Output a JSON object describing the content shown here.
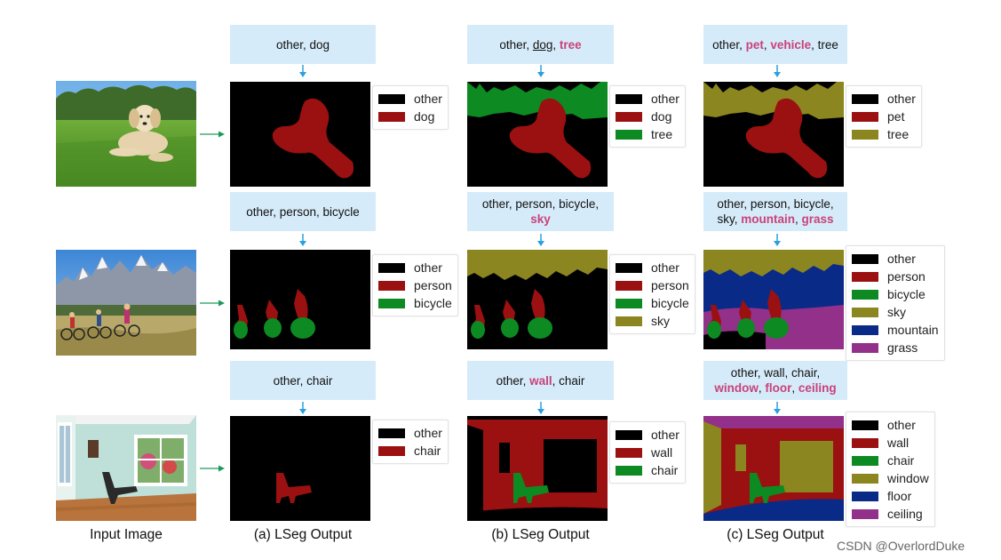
{
  "colors": {
    "other": "#000000",
    "red": "#9b1010",
    "green": "#0d8a22",
    "olive": "#8c8620",
    "blue": "#0a2a88",
    "purple": "#92308a",
    "prompt_bg": "#d6ebf9",
    "highlight": "#c8427a",
    "arrow": "#2aa0e0",
    "green_arrow": "#1a9a5a"
  },
  "prompts": {
    "r1a": {
      "parts": [
        {
          "t": "other, dog"
        }
      ]
    },
    "r1b": {
      "parts": [
        {
          "t": "other, "
        },
        {
          "t": "dog",
          "ul": true
        },
        {
          "t": ", "
        },
        {
          "t": "tree",
          "hl": true
        }
      ]
    },
    "r1c": {
      "parts": [
        {
          "t": "other, "
        },
        {
          "t": "pet",
          "hl": true
        },
        {
          "t": ", "
        },
        {
          "t": "vehicle",
          "hl": true
        },
        {
          "t": ", tree"
        }
      ]
    },
    "r2a": {
      "parts": [
        {
          "t": "other, person, bicycle"
        }
      ]
    },
    "r2b": {
      "parts": [
        {
          "t": "other, person, bicycle,"
        },
        {
          "br": true
        },
        {
          "t": "sky",
          "hl": true
        }
      ]
    },
    "r2c": {
      "parts": [
        {
          "t": "other, person, bicycle,"
        },
        {
          "br": true
        },
        {
          "t": "sky, "
        },
        {
          "t": "mountain",
          "hl": true
        },
        {
          "t": ", "
        },
        {
          "t": "grass",
          "hl": true
        }
      ]
    },
    "r3a": {
      "parts": [
        {
          "t": "other, chair"
        }
      ]
    },
    "r3b": {
      "parts": [
        {
          "t": "other, "
        },
        {
          "t": "wall",
          "hl": true
        },
        {
          "t": ", chair"
        }
      ]
    },
    "r3c": {
      "parts": [
        {
          "t": "other, wall, chair,"
        },
        {
          "br": true
        },
        {
          "t": "window",
          "hl": true
        },
        {
          "t": ", "
        },
        {
          "t": "floor",
          "hl": true
        },
        {
          "t": ", "
        },
        {
          "t": "ceiling",
          "hl": true
        }
      ]
    }
  },
  "legends": {
    "r1a": [
      {
        "label": "other",
        "color": "#000000"
      },
      {
        "label": "dog",
        "color": "#9b1010"
      }
    ],
    "r1b": [
      {
        "label": "other",
        "color": "#000000"
      },
      {
        "label": "dog",
        "color": "#9b1010"
      },
      {
        "label": "tree",
        "color": "#0d8a22"
      }
    ],
    "r1c": [
      {
        "label": "other",
        "color": "#000000"
      },
      {
        "label": "pet",
        "color": "#9b1010"
      },
      {
        "label": "tree",
        "color": "#8c8620"
      }
    ],
    "r2a": [
      {
        "label": "other",
        "color": "#000000"
      },
      {
        "label": "person",
        "color": "#9b1010"
      },
      {
        "label": "bicycle",
        "color": "#0d8a22"
      }
    ],
    "r2b": [
      {
        "label": "other",
        "color": "#000000"
      },
      {
        "label": "person",
        "color": "#9b1010"
      },
      {
        "label": "bicycle",
        "color": "#0d8a22"
      },
      {
        "label": "sky",
        "color": "#8c8620"
      }
    ],
    "r2c": [
      {
        "label": "other",
        "color": "#000000"
      },
      {
        "label": "person",
        "color": "#9b1010"
      },
      {
        "label": "bicycle",
        "color": "#0d8a22"
      },
      {
        "label": "sky",
        "color": "#8c8620"
      },
      {
        "label": "mountain",
        "color": "#0a2a88"
      },
      {
        "label": "grass",
        "color": "#92308a"
      }
    ],
    "r3a": [
      {
        "label": "other",
        "color": "#000000"
      },
      {
        "label": "chair",
        "color": "#9b1010"
      }
    ],
    "r3b": [
      {
        "label": "other",
        "color": "#000000"
      },
      {
        "label": "wall",
        "color": "#9b1010"
      },
      {
        "label": "chair",
        "color": "#0d8a22"
      }
    ],
    "r3c": [
      {
        "label": "other",
        "color": "#000000"
      },
      {
        "label": "wall",
        "color": "#9b1010"
      },
      {
        "label": "chair",
        "color": "#0d8a22"
      },
      {
        "label": "window",
        "color": "#8c8620"
      },
      {
        "label": "floor",
        "color": "#0a2a88"
      },
      {
        "label": "ceiling",
        "color": "#92308a"
      }
    ]
  },
  "captions": {
    "input": "Input Image",
    "a": "(a) LSeg Output",
    "b": "(b) LSeg Output",
    "c": "(c) LSeg Output"
  },
  "watermark": "CSDN @OverlordDuke"
}
